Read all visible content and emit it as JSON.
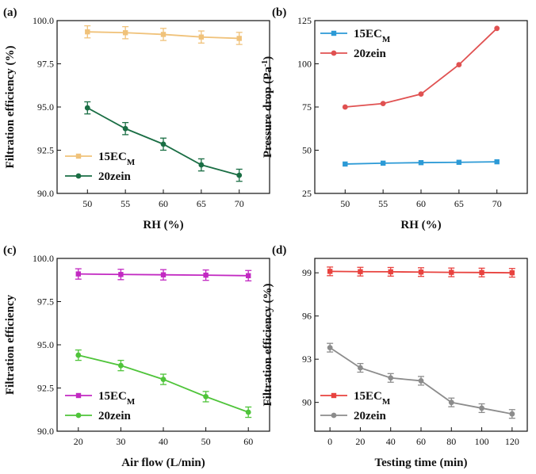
{
  "figure": {
    "chart_data": [
      {
        "panel": "(a)",
        "type": "line",
        "xlabel": "RH (%)",
        "ylabel": "Filtration efficiency (%)",
        "x": [
          50,
          55,
          60,
          65,
          70
        ],
        "xticks": [
          "50",
          "55",
          "60",
          "65",
          "70"
        ],
        "xlim": [
          46,
          74
        ],
        "ylim": [
          90.0,
          100.0
        ],
        "yticks": [
          "90.0",
          "92.5",
          "95.0",
          "97.5",
          "100.0"
        ],
        "legend_position": "bottom-left",
        "series": [
          {
            "name": "15EC",
            "name_sub": "M",
            "color": "#f0c27a",
            "marker": "square",
            "values": [
              99.35,
              99.3,
              99.2,
              99.05,
              98.97
            ],
            "error": [
              0.35,
              0.35,
              0.35,
              0.35,
              0.35
            ]
          },
          {
            "name": "20zein",
            "name_sub": "",
            "color": "#1a6e44",
            "marker": "circle",
            "values": [
              94.95,
              93.75,
              92.85,
              91.65,
              91.05
            ],
            "error": [
              0.35,
              0.35,
              0.35,
              0.35,
              0.35
            ]
          }
        ]
      },
      {
        "panel": "(b)",
        "type": "line",
        "xlabel": "RH (%)",
        "ylabel": "Pressure drop (Pa",
        "ylabel_sup": "-1",
        "ylabel_end": ")",
        "x": [
          50,
          55,
          60,
          65,
          70
        ],
        "xticks": [
          "50",
          "55",
          "60",
          "65",
          "70"
        ],
        "xlim": [
          46,
          74
        ],
        "ylim": [
          25,
          125
        ],
        "yticks": [
          "25",
          "50",
          "75",
          "100",
          "125"
        ],
        "legend_position": "top-left",
        "series": [
          {
            "name": "15EC",
            "name_sub": "M",
            "color": "#2c9ad6",
            "marker": "square",
            "values": [
              42.0,
              42.5,
              42.8,
              43.0,
              43.3
            ],
            "error": []
          },
          {
            "name": "20zein",
            "name_sub": "",
            "color": "#e05151",
            "marker": "circle",
            "values": [
              75.0,
              77.0,
              82.5,
              99.5,
              120.5
            ],
            "error": []
          }
        ]
      },
      {
        "panel": "(c)",
        "type": "line",
        "xlabel": "Air flow (L/min)",
        "ylabel": "Filtration efficiency",
        "x": [
          20,
          30,
          40,
          50,
          60
        ],
        "xticks": [
          "20",
          "30",
          "40",
          "50",
          "60"
        ],
        "xlim": [
          15,
          65
        ],
        "ylim": [
          90.0,
          100.0
        ],
        "yticks": [
          "90.0",
          "92.5",
          "95.0",
          "97.5",
          "100.0"
        ],
        "legend_position": "bottom-left",
        "series": [
          {
            "name": "15EC",
            "name_sub": "M",
            "color": "#c229c2",
            "marker": "square",
            "values": [
              99.1,
              99.07,
              99.05,
              99.03,
              99.0
            ],
            "error": [
              0.3,
              0.3,
              0.3,
              0.3,
              0.3
            ]
          },
          {
            "name": "20zein",
            "name_sub": "",
            "color": "#4fc43a",
            "marker": "circle",
            "values": [
              94.4,
              93.8,
              93.0,
              92.0,
              91.1
            ],
            "error": [
              0.3,
              0.3,
              0.3,
              0.3,
              0.3
            ]
          }
        ]
      },
      {
        "panel": "(d)",
        "type": "line",
        "xlabel": "Testing time (min)",
        "ylabel": "Filtration efficiency (%)",
        "x": [
          0,
          20,
          40,
          60,
          80,
          100,
          120
        ],
        "xticks": [
          "0",
          "20",
          "40",
          "60",
          "80",
          "100",
          "120"
        ],
        "xlim": [
          -10,
          130
        ],
        "ylim": [
          88.0,
          100.0
        ],
        "yticks": [
          "90",
          "93",
          "96",
          "99"
        ],
        "yticks_values": [
          90,
          93,
          96,
          99
        ],
        "legend_position": "bottom-left",
        "series": [
          {
            "name": "15EC",
            "name_sub": "M",
            "color": "#e8423e",
            "marker": "square",
            "values": [
              99.1,
              99.08,
              99.07,
              99.05,
              99.03,
              99.02,
              99.0
            ],
            "error": [
              0.3,
              0.3,
              0.3,
              0.3,
              0.3,
              0.3,
              0.3
            ]
          },
          {
            "name": "20zein",
            "name_sub": "",
            "color": "#8c8c8c",
            "marker": "circle",
            "values": [
              93.8,
              92.4,
              91.7,
              91.5,
              90.0,
              89.6,
              89.2
            ],
            "error": [
              0.3,
              0.3,
              0.3,
              0.3,
              0.3,
              0.3,
              0.3
            ]
          }
        ]
      }
    ]
  }
}
